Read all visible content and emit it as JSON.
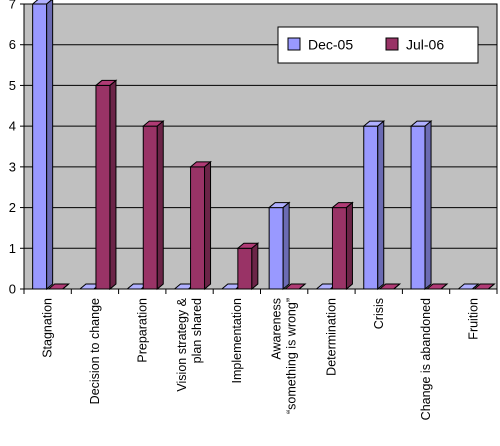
{
  "chart_data": {
    "type": "bar",
    "title": "",
    "xlabel": "",
    "ylabel": "",
    "ylim": [
      0,
      7
    ],
    "y_ticks": [
      0,
      1,
      2,
      3,
      4,
      5,
      6,
      7
    ],
    "grid": "horizontal",
    "legend_position": "top-right",
    "categories": [
      [
        "Stagnation"
      ],
      [
        "Decision to change"
      ],
      [
        "Preparation"
      ],
      [
        "Vision strategy &",
        "plan shared"
      ],
      [
        "Implementation"
      ],
      [
        "Awareness",
        "“something is wrong”"
      ],
      [
        "Determination"
      ],
      [
        "Crisis"
      ],
      [
        "Change is abandoned"
      ],
      [
        "Fruition"
      ]
    ],
    "series": [
      {
        "name": "Dec-05",
        "color": "#9999ff",
        "values": [
          7,
          0,
          0,
          0,
          0,
          2,
          0,
          4,
          4,
          0
        ]
      },
      {
        "name": "Jul-06",
        "color": "#993366",
        "values": [
          0,
          5,
          4,
          3,
          1,
          0,
          2,
          0,
          0,
          0
        ]
      }
    ],
    "plot_background": "#c0c0c0"
  }
}
